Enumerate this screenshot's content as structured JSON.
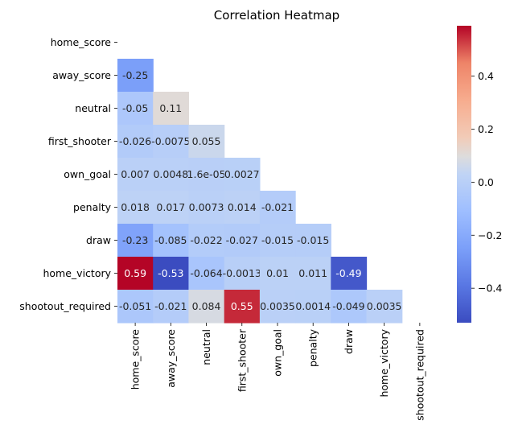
{
  "chart_data": {
    "type": "heatmap",
    "title": "Correlation Heatmap",
    "variables": [
      "home_score",
      "away_score",
      "neutral",
      "first_shooter",
      "own_goal",
      "penalty",
      "draw",
      "home_victory",
      "shootout_required"
    ],
    "mask": "upper triangle including diagonal",
    "cells": [
      {
        "row": "away_score",
        "col": "home_score",
        "value": -0.25,
        "label": "-0.25"
      },
      {
        "row": "neutral",
        "col": "home_score",
        "value": -0.05,
        "label": "-0.05"
      },
      {
        "row": "neutral",
        "col": "away_score",
        "value": 0.11,
        "label": "0.11"
      },
      {
        "row": "first_shooter",
        "col": "home_score",
        "value": -0.026,
        "label": "-0.026"
      },
      {
        "row": "first_shooter",
        "col": "away_score",
        "value": -0.0075,
        "label": "-0.0075"
      },
      {
        "row": "first_shooter",
        "col": "neutral",
        "value": 0.055,
        "label": "0.055"
      },
      {
        "row": "own_goal",
        "col": "home_score",
        "value": 0.007,
        "label": "0.007"
      },
      {
        "row": "own_goal",
        "col": "away_score",
        "value": 0.0048,
        "label": "0.0048"
      },
      {
        "row": "own_goal",
        "col": "neutral",
        "value": 1.6e-05,
        "label": "1.6e-05"
      },
      {
        "row": "own_goal",
        "col": "first_shooter",
        "value": 0.0027,
        "label": "0.0027"
      },
      {
        "row": "penalty",
        "col": "home_score",
        "value": 0.018,
        "label": "0.018"
      },
      {
        "row": "penalty",
        "col": "away_score",
        "value": 0.017,
        "label": "0.017"
      },
      {
        "row": "penalty",
        "col": "neutral",
        "value": 0.0073,
        "label": "0.0073"
      },
      {
        "row": "penalty",
        "col": "first_shooter",
        "value": 0.014,
        "label": "0.014"
      },
      {
        "row": "penalty",
        "col": "own_goal",
        "value": -0.021,
        "label": "-0.021"
      },
      {
        "row": "draw",
        "col": "home_score",
        "value": -0.23,
        "label": "-0.23"
      },
      {
        "row": "draw",
        "col": "away_score",
        "value": -0.085,
        "label": "-0.085"
      },
      {
        "row": "draw",
        "col": "neutral",
        "value": -0.022,
        "label": "-0.022"
      },
      {
        "row": "draw",
        "col": "first_shooter",
        "value": -0.027,
        "label": "-0.027"
      },
      {
        "row": "draw",
        "col": "own_goal",
        "value": -0.015,
        "label": "-0.015"
      },
      {
        "row": "draw",
        "col": "penalty",
        "value": -0.015,
        "label": "-0.015"
      },
      {
        "row": "home_victory",
        "col": "home_score",
        "value": 0.59,
        "label": "0.59"
      },
      {
        "row": "home_victory",
        "col": "away_score",
        "value": -0.53,
        "label": "-0.53"
      },
      {
        "row": "home_victory",
        "col": "neutral",
        "value": -0.064,
        "label": "-0.064"
      },
      {
        "row": "home_victory",
        "col": "first_shooter",
        "value": -0.0013,
        "label": "-0.0013"
      },
      {
        "row": "home_victory",
        "col": "own_goal",
        "value": 0.01,
        "label": "0.01"
      },
      {
        "row": "home_victory",
        "col": "penalty",
        "value": 0.011,
        "label": "0.011"
      },
      {
        "row": "home_victory",
        "col": "draw",
        "value": -0.49,
        "label": "-0.49"
      },
      {
        "row": "shootout_required",
        "col": "home_score",
        "value": -0.051,
        "label": "-0.051"
      },
      {
        "row": "shootout_required",
        "col": "away_score",
        "value": -0.021,
        "label": "-0.021"
      },
      {
        "row": "shootout_required",
        "col": "neutral",
        "value": 0.084,
        "label": "0.084"
      },
      {
        "row": "shootout_required",
        "col": "first_shooter",
        "value": 0.55,
        "label": "0.55"
      },
      {
        "row": "shootout_required",
        "col": "own_goal",
        "value": 0.0035,
        "label": "0.0035"
      },
      {
        "row": "shootout_required",
        "col": "penalty",
        "value": 0.0014,
        "label": "0.0014"
      },
      {
        "row": "shootout_required",
        "col": "draw",
        "value": -0.049,
        "label": "-0.049"
      },
      {
        "row": "shootout_required",
        "col": "home_victory",
        "value": 0.0035,
        "label": "0.0035"
      }
    ],
    "colorbar": {
      "colormap": "coolwarm",
      "vmin": -0.53,
      "vmax": 0.59,
      "ticks": [
        -0.4,
        -0.2,
        0.0,
        0.2,
        0.4
      ],
      "tick_labels": [
        "−0.4",
        "−0.2",
        "0.0",
        "0.2",
        "0.4"
      ]
    }
  }
}
